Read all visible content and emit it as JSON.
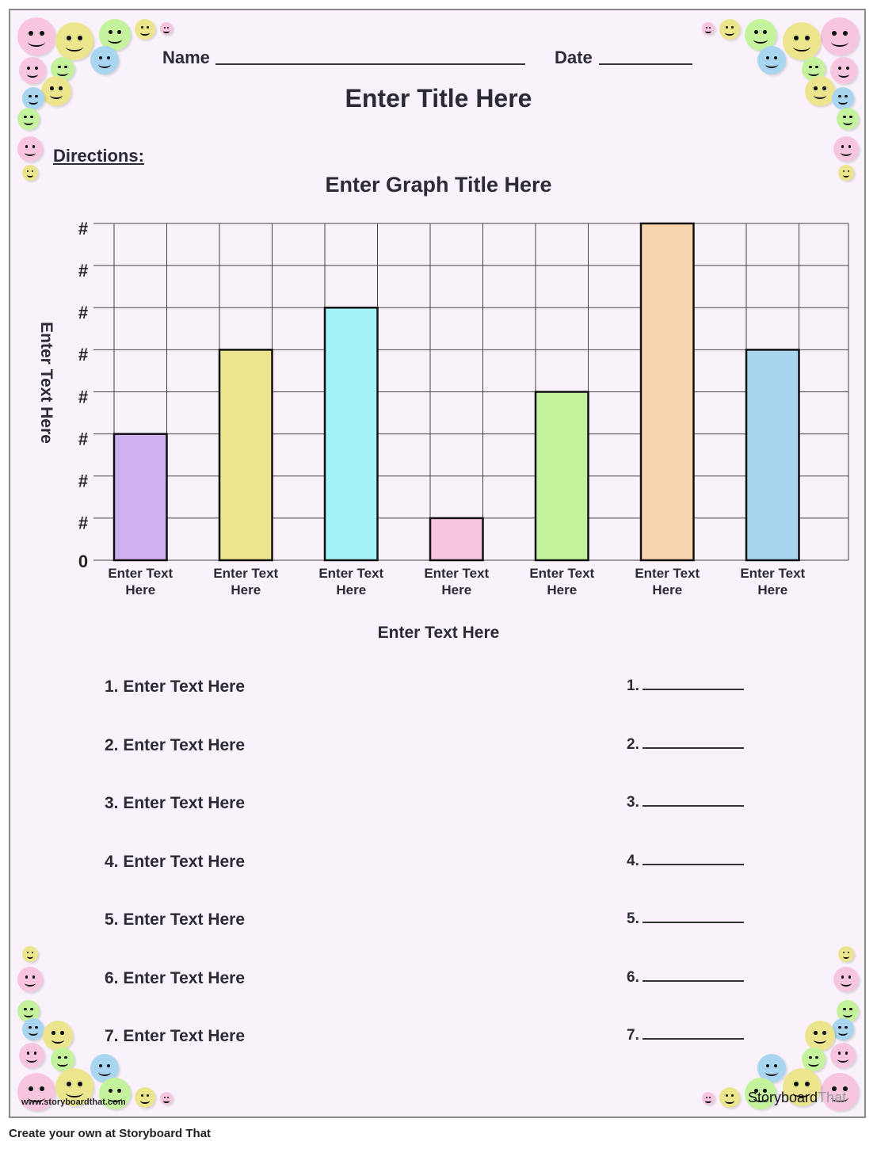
{
  "header": {
    "name_label": "Name",
    "date_label": "Date",
    "title": "Enter Title Here",
    "directions_label": "Directions:"
  },
  "chart_data": {
    "type": "bar",
    "title": "Enter Graph Title Here",
    "xlabel": "Enter Text Here",
    "ylabel": "Enter Text Here",
    "categories": [
      "Enter Text Here",
      "Enter Text Here",
      "Enter Text Here",
      "Enter Text Here",
      "Enter Text Here",
      "Enter Text Here",
      "Enter Text Here"
    ],
    "values": [
      3,
      5,
      6,
      1,
      4,
      8,
      5
    ],
    "colors": [
      "#d1b0f2",
      "#ece58e",
      "#a3f3f7",
      "#f7c6de",
      "#c4f29d",
      "#f7d5ae",
      "#a9d5f0"
    ],
    "ytick_labels": [
      "0",
      "#",
      "#",
      "#",
      "#",
      "#",
      "#",
      "#",
      "#"
    ],
    "ylim": [
      0,
      8
    ],
    "grid": true
  },
  "questions": [
    "1. Enter Text Here",
    "2. Enter Text Here",
    "3. Enter Text Here",
    "4. Enter Text Here",
    "5. Enter Text Here",
    "6. Enter Text Here",
    "7. Enter Text Here"
  ],
  "answers": [
    "1.",
    "2.",
    "3.",
    "4.",
    "5.",
    "6.",
    "7."
  ],
  "watermark": {
    "url": "www.storyboardthat.com",
    "logo_a": "Storyboard",
    "logo_b": "That"
  },
  "footer": "Create your own at Storyboard That",
  "emoji_colors": [
    "#f7c6de",
    "#ece58e",
    "#c4f29d",
    "#a9d5f0"
  ]
}
